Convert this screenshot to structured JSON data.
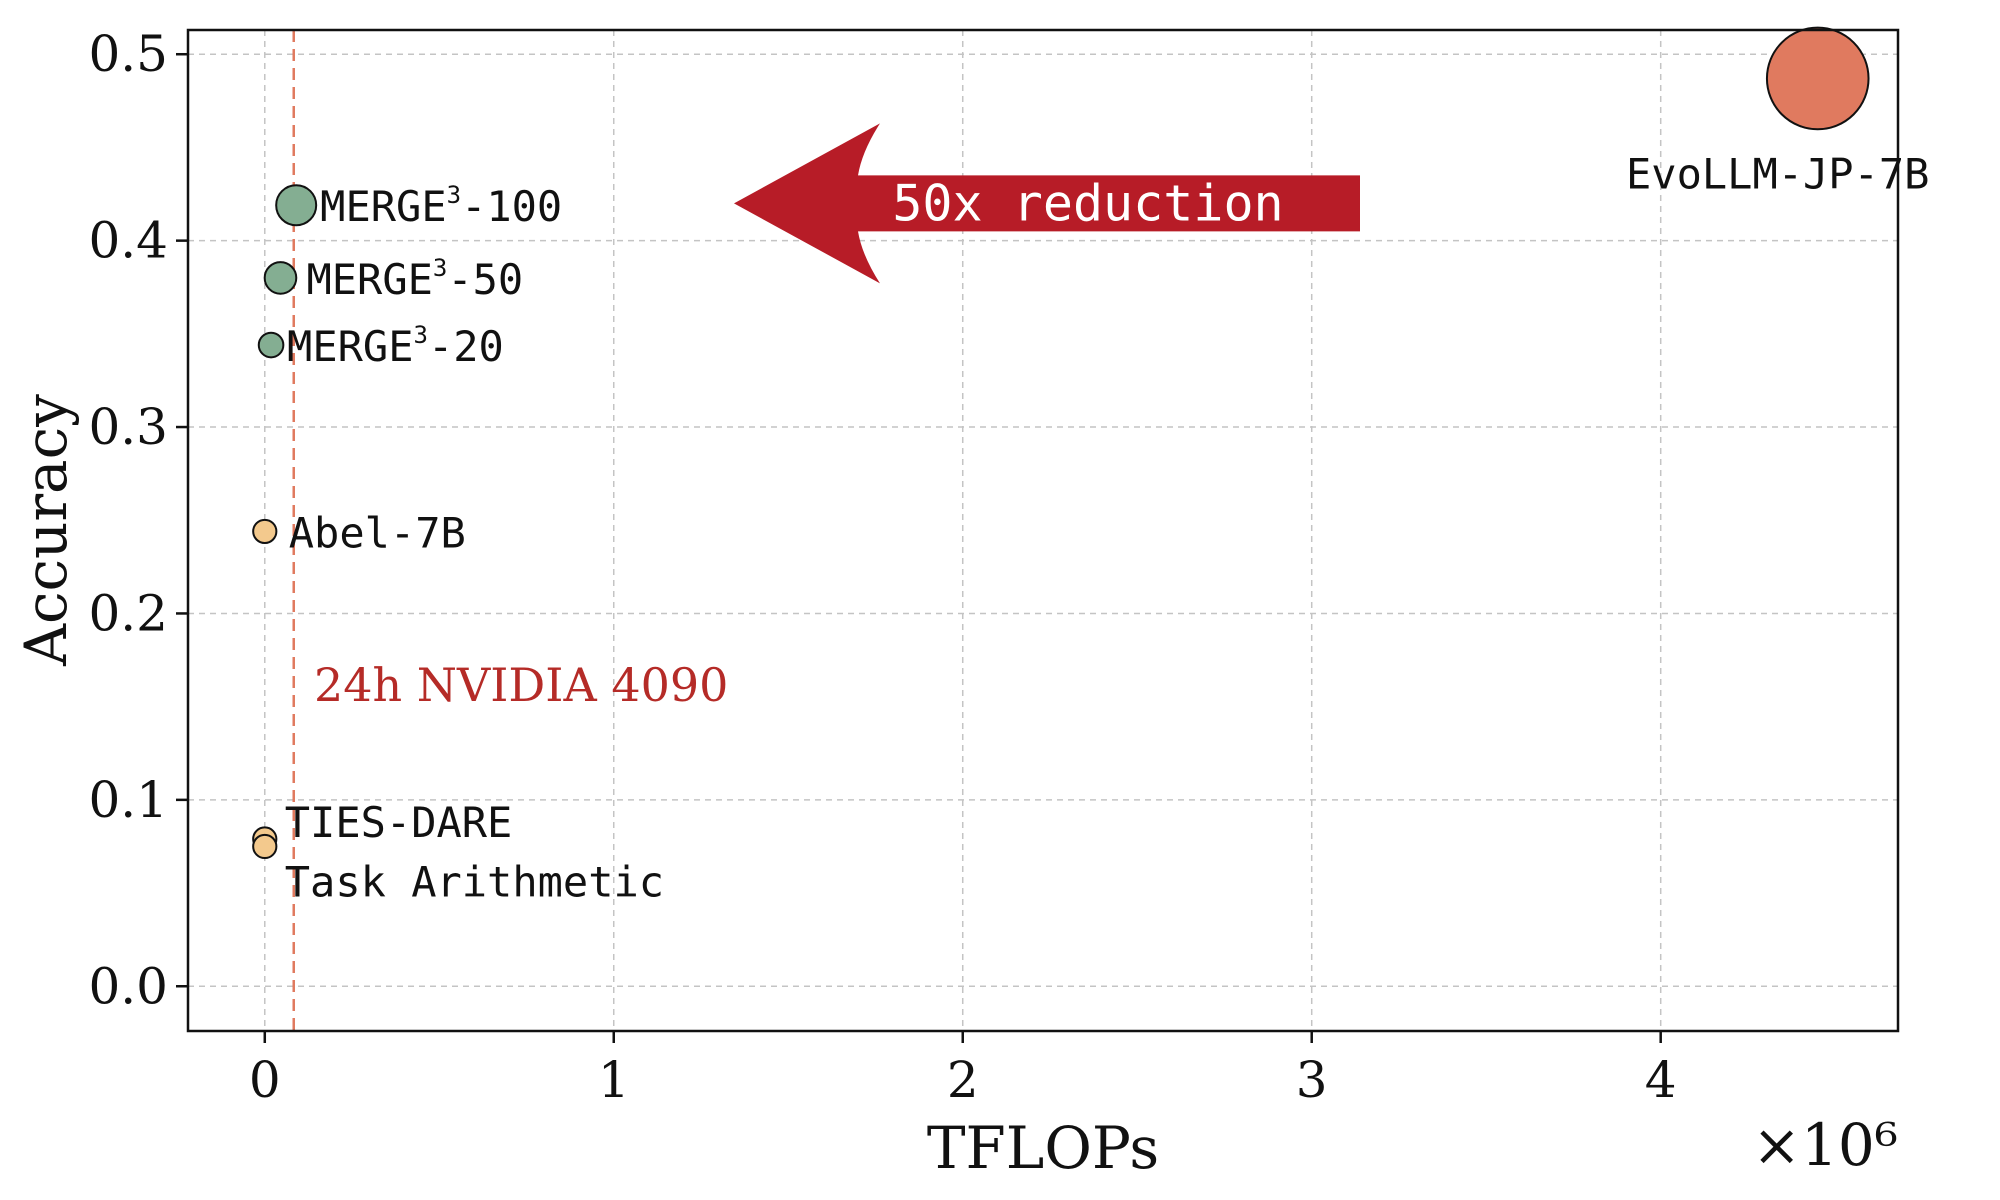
{
  "chart_data": {
    "type": "scatter",
    "title": "",
    "xlabel": "TFLOPs",
    "ylabel": "Accuracy",
    "x_multiplier_label": "×10⁶",
    "xlim": [
      -0.22,
      4.68
    ],
    "ylim": [
      -0.024,
      0.513
    ],
    "xticks": [
      0,
      1,
      2,
      3,
      4
    ],
    "xtick_labels": [
      "0",
      "1",
      "2",
      "3",
      "4"
    ],
    "yticks": [
      0.0,
      0.1,
      0.2,
      0.3,
      0.4,
      0.5
    ],
    "ytick_labels": [
      "0.0",
      "0.1",
      "0.2",
      "0.3",
      "0.4",
      "0.5"
    ],
    "grid": true,
    "bubble_size_encodes": "TFLOPs",
    "points": [
      {
        "label_base": "MERGE",
        "label_sup": "3",
        "label_tail": "-100",
        "x": 0.09,
        "y": 0.419,
        "color": "#84ae92",
        "size": 1.0
      },
      {
        "label_base": "MERGE",
        "label_sup": "3",
        "label_tail": "-50",
        "x": 0.045,
        "y": 0.38,
        "color": "#84ae92",
        "size": 0.7
      },
      {
        "label_base": "MERGE",
        "label_sup": "3",
        "label_tail": "-20",
        "x": 0.018,
        "y": 0.344,
        "color": "#84ae92",
        "size": 0.45
      },
      {
        "label_base": "Abel-7B",
        "label_sup": "",
        "label_tail": "",
        "x": 0.0,
        "y": 0.244,
        "color": "#f3c98d",
        "size": 0.4
      },
      {
        "label_base": "TIES-DARE",
        "label_sup": "",
        "label_tail": "",
        "x": 0.0,
        "y": 0.079,
        "color": "#f3c98d",
        "size": 0.4
      },
      {
        "label_base": "Task Arithmetic",
        "label_sup": "",
        "label_tail": "",
        "x": 0.0,
        "y": 0.075,
        "color": "#f3c98d",
        "size": 0.4
      },
      {
        "label_base": "EvoLLM-JP-7B",
        "label_sup": "",
        "label_tail": "",
        "x": 4.45,
        "y": 0.487,
        "color": "#e07a5f",
        "size": 3.2
      }
    ],
    "reference_line": {
      "x": 0.083,
      "label": "24h NVIDIA 4090",
      "color": "#e07a5f",
      "label_color": "#b52b27"
    },
    "annotation": {
      "text": "50x reduction",
      "color": "#b71c27"
    }
  }
}
